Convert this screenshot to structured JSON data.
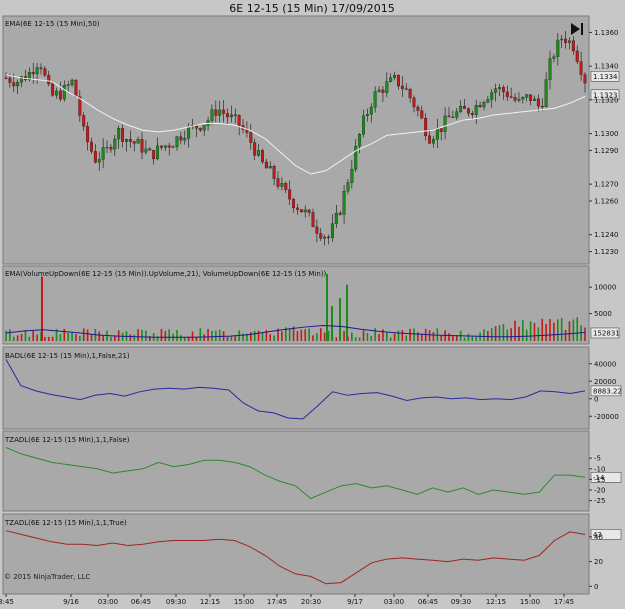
{
  "window": {
    "title": "6E 12-15 (15 Min)  17/09/2015"
  },
  "copyright": "© 2015 NinjaTrader, LLC",
  "colors": {
    "background": "#c7c7c7",
    "panel": "#a9a9a9",
    "up_candle": "#1a8c1a",
    "down_candle": "#c21a1a",
    "ema_line": "#f0f0f0",
    "vol_ema": "#1a1a8c",
    "badl": "#2a2aa0",
    "tzadl_false": "#2d8a2d",
    "tzadl_true": "#a02424"
  },
  "x_axis": {
    "labels": [
      "8:45",
      "9/16",
      "03:00",
      "06:45",
      "09:30",
      "12:15",
      "15:00",
      "17:45",
      "20:30",
      "9/17",
      "03:00",
      "06:45",
      "09:30",
      "12:15",
      "15:00",
      "17:45"
    ]
  },
  "chart_data": [
    {
      "type": "candlestick",
      "title": "EMA(6E 12-15 (15 Min),50)",
      "ylim": [
        1.1225,
        1.1365
      ],
      "ticks": [
        "1.1360",
        "1.1340",
        "1.1320",
        "1.1300",
        "1.1290",
        "1.1270",
        "1.1260",
        "1.1240",
        "1.1230"
      ],
      "tick_values": [
        1.136,
        1.134,
        1.132,
        1.13,
        1.129,
        1.127,
        1.126,
        1.124,
        1.123
      ],
      "price_badges": [
        "1.1334",
        "1.1323"
      ],
      "badge_values": [
        1.1334,
        1.1323
      ],
      "close_path": [
        1.1333,
        1.1331,
        1.1335,
        1.1344,
        1.1322,
        1.1324,
        1.1331,
        1.13,
        1.1285,
        1.1289,
        1.1302,
        1.1296,
        1.1293,
        1.1287,
        1.1292,
        1.1295,
        1.1301,
        1.1304,
        1.1307,
        1.1315,
        1.131,
        1.1305,
        1.1295,
        1.1282,
        1.1275,
        1.1265,
        1.1258,
        1.1252,
        1.1243,
        1.1238,
        1.1255,
        1.128,
        1.1305,
        1.1322,
        1.1328,
        1.1332,
        1.1325,
        1.1313,
        1.1298,
        1.1303,
        1.1311,
        1.1313,
        1.1315,
        1.1322,
        1.1327,
        1.1324,
        1.1318,
        1.1322,
        1.1315,
        1.1345,
        1.1358,
        1.1352,
        1.1332
      ],
      "ema_path": [
        1.1335,
        1.1333,
        1.1332,
        1.1331,
        1.1325,
        1.132,
        1.1314,
        1.1309,
        1.1305,
        1.1302,
        1.1301,
        1.1302,
        1.1304,
        1.1306,
        1.1306,
        1.1305,
        1.1302,
        1.1297,
        1.1289,
        1.1281,
        1.1276,
        1.1278,
        1.1284,
        1.129,
        1.1294,
        1.1299,
        1.13,
        1.1301,
        1.1302,
        1.1305,
        1.1308,
        1.1309,
        1.1311,
        1.1312,
        1.1313,
        1.1314,
        1.1315,
        1.1318,
        1.1322
      ]
    },
    {
      "type": "bar",
      "title": "EMA(VolumeUpDown(6E 12-15 (15 Min)).UpVolume,21), VolumeUpDown(6E 12-15 (15 Min))",
      "ylim": [
        0,
        12500
      ],
      "ticks": [
        "10000",
        "5000"
      ],
      "tick_values": [
        10000,
        5000
      ],
      "value_badge": "1528",
      "value_badge_2": "1831",
      "spikes": [
        [
          42,
          12000
        ],
        [
          327,
          12500
        ],
        [
          347,
          10500
        ],
        [
          340,
          8000
        ],
        [
          332,
          6500
        ]
      ]
    },
    {
      "type": "line",
      "title": "BADL(6E 12-15 (15 Min),1,False,21)",
      "ylim": [
        -30000,
        50000
      ],
      "ticks": [
        "40000",
        "20000",
        "0",
        "-20000"
      ],
      "tick_values": [
        40000,
        20000,
        0,
        -20000
      ],
      "value_badge": "8883.22",
      "values": [
        45000,
        15000,
        9000,
        5000,
        2000,
        -1000,
        4000,
        6000,
        3000,
        8000,
        11000,
        12000,
        11000,
        13000,
        12000,
        10000,
        -5000,
        -14000,
        -16000,
        -22000,
        -23000,
        -8000,
        8000,
        4000,
        6000,
        7000,
        3000,
        -2000,
        1000,
        2000,
        0,
        1000,
        -1000,
        0,
        -1000,
        2000,
        9000,
        8000,
        6000,
        9000
      ]
    },
    {
      "type": "line",
      "title": "TZADL(6E 12-15 (15 Min),1,1,False)",
      "ylim": [
        -28,
        4
      ],
      "ticks": [
        "-5",
        "-10",
        "-15",
        "-20",
        "-25"
      ],
      "tick_values": [
        -5,
        -10,
        -15,
        -20,
        -25
      ],
      "value_badge": "-14",
      "values": [
        0,
        -3,
        -5,
        -7,
        -8,
        -9,
        -10,
        -12,
        -11,
        -10,
        -7,
        -9,
        -8,
        -6,
        -6,
        -7,
        -9,
        -13,
        -16,
        -18,
        -24,
        -21,
        -18,
        -17,
        -19,
        -18,
        -20,
        -22,
        -19,
        -21,
        -19,
        -22,
        -20,
        -21,
        -22,
        -21,
        -13,
        -13,
        -14
      ]
    },
    {
      "type": "line",
      "title": "TZADL(6E 12-15 (15 Min),1,1,True)",
      "ylim": [
        -3,
        52
      ],
      "ticks": [
        "40",
        "20",
        "0"
      ],
      "tick_values": [
        40,
        20,
        0
      ],
      "value_badge": "43",
      "values": [
        45,
        42,
        39,
        36,
        34,
        34,
        33,
        35,
        33,
        34,
        36,
        37,
        37,
        37,
        38,
        37,
        32,
        25,
        16,
        10,
        8,
        2,
        3,
        11,
        19,
        22,
        23,
        22,
        21,
        20,
        22,
        21,
        23,
        22,
        21,
        25,
        37,
        44,
        42
      ]
    }
  ]
}
